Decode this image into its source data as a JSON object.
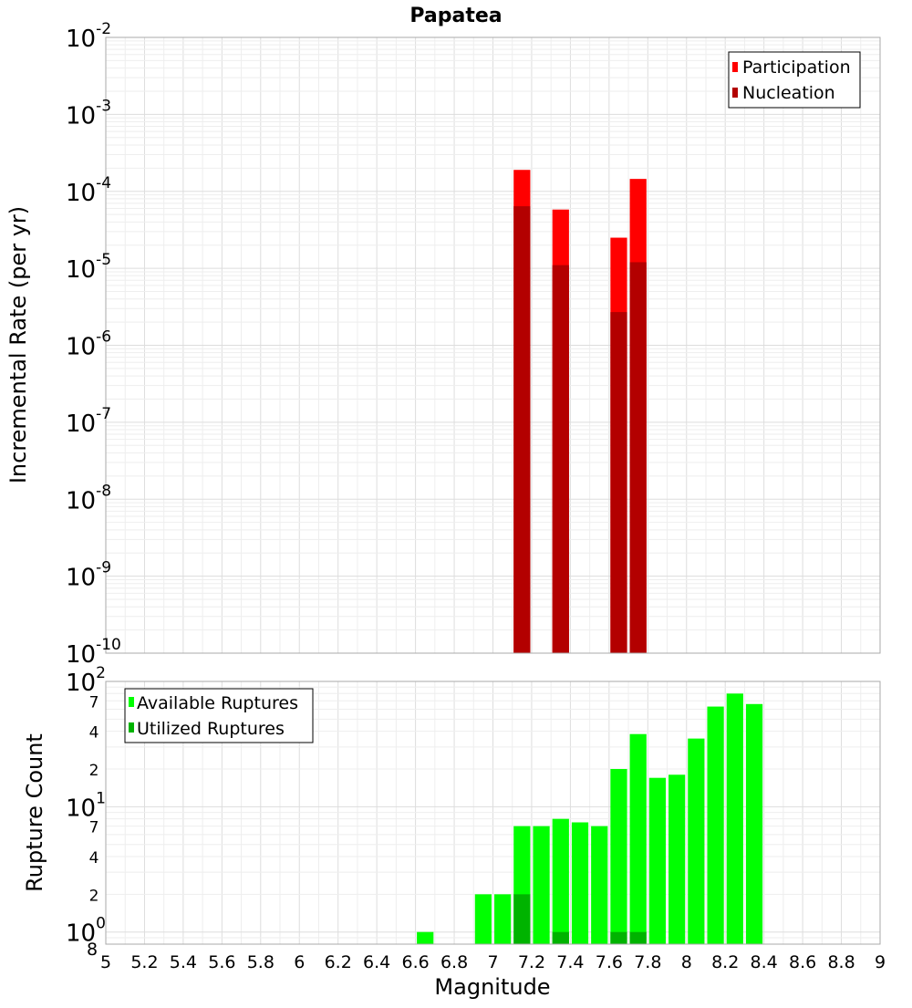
{
  "chart_data": [
    {
      "type": "bar",
      "title": "Papatea",
      "ylabel": "Incremental Rate (per yr)",
      "xlabel": "",
      "xlim": [
        5,
        9
      ],
      "ylim": [
        1e-10,
        0.01
      ],
      "yscale": "log",
      "bin_width": 0.1,
      "y_ticks": [
        {
          "base": "10",
          "exp": "-2"
        },
        {
          "base": "10",
          "exp": "-3"
        },
        {
          "base": "10",
          "exp": "-4"
        },
        {
          "base": "10",
          "exp": "-5"
        },
        {
          "base": "10",
          "exp": "-6"
        },
        {
          "base": "10",
          "exp": "-7"
        },
        {
          "base": "10",
          "exp": "-8"
        },
        {
          "base": "10",
          "exp": "-9"
        },
        {
          "base": "10",
          "exp": "-10"
        }
      ],
      "legend_position": "top-right",
      "series": [
        {
          "name": "Participation",
          "color": "#ff0000",
          "x": [
            7.15,
            7.35,
            7.65,
            7.75
          ],
          "values": [
            0.00019,
            5.8e-05,
            2.5e-05,
            0.000145
          ]
        },
        {
          "name": "Nucleation",
          "color": "#b30000",
          "x": [
            7.15,
            7.35,
            7.65,
            7.75
          ],
          "values": [
            6.4e-05,
            1.1e-05,
            2.7e-06,
            1.2e-05
          ]
        }
      ]
    },
    {
      "type": "bar",
      "title": "",
      "ylabel": "Rupture Count",
      "xlabel": "Magnitude",
      "xlim": [
        5,
        9
      ],
      "ylim": [
        0.8,
        100
      ],
      "yscale": "log",
      "bin_width": 0.1,
      "x_ticks": [
        "5",
        "5.2",
        "5.4",
        "5.6",
        "5.8",
        "6",
        "6.2",
        "6.4",
        "6.6",
        "6.8",
        "7",
        "7.2",
        "7.4",
        "7.6",
        "7.8",
        "8",
        "8.2",
        "8.4",
        "8.6",
        "8.8",
        "9"
      ],
      "y_major_ticks": [
        {
          "value": 100,
          "base": "10",
          "exp": "2"
        },
        {
          "value": 10,
          "base": "10",
          "exp": "1"
        },
        {
          "value": 1,
          "base": "10",
          "exp": "0"
        }
      ],
      "y_minor_ticks": [
        {
          "value": 70,
          "label": "7"
        },
        {
          "value": 40,
          "label": "4"
        },
        {
          "value": 20,
          "label": "2"
        },
        {
          "value": 7,
          "label": "7"
        },
        {
          "value": 4,
          "label": "4"
        },
        {
          "value": 2,
          "label": "2"
        },
        {
          "value": 0.8,
          "label": "8"
        }
      ],
      "legend_position": "top-left",
      "series": [
        {
          "name": "Available Ruptures",
          "color": "#00ff00",
          "x": [
            6.65,
            6.95,
            7.05,
            7.15,
            7.25,
            7.35,
            7.45,
            7.55,
            7.65,
            7.75,
            7.85,
            7.95,
            8.05,
            8.15,
            8.25,
            8.35
          ],
          "values": [
            1,
            2,
            2,
            7,
            7,
            8,
            7.5,
            7,
            20,
            38,
            17,
            18,
            35,
            63,
            80,
            66
          ]
        },
        {
          "name": "Utilized Ruptures",
          "color": "#00b300",
          "x": [
            7.15,
            7.35,
            7.65,
            7.75
          ],
          "values": [
            2,
            1,
            1,
            1
          ]
        }
      ]
    }
  ]
}
